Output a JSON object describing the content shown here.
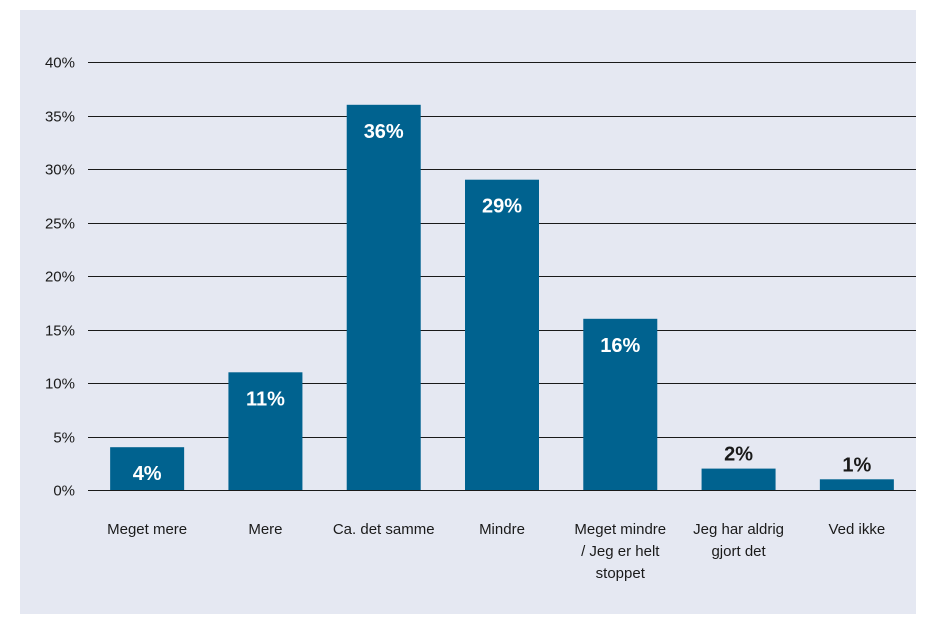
{
  "chart_data": {
    "type": "bar",
    "categories": [
      [
        "Meget mere"
      ],
      [
        "Mere"
      ],
      [
        "Ca. det samme"
      ],
      [
        "Mindre"
      ],
      [
        "Meget mindre",
        "/ Jeg er helt",
        "stoppet"
      ],
      [
        "Jeg har aldrig",
        "gjort det"
      ],
      [
        "Ved ikke"
      ]
    ],
    "values": [
      4,
      11,
      36,
      29,
      16,
      2,
      1
    ],
    "data_labels": [
      "4%",
      "11%",
      "36%",
      "29%",
      "16%",
      "2%",
      "1%"
    ],
    "yticks": [
      {
        "value": 0,
        "label": "0%"
      },
      {
        "value": 5,
        "label": "5%"
      },
      {
        "value": 10,
        "label": "10%"
      },
      {
        "value": 15,
        "label": "15%"
      },
      {
        "value": 20,
        "label": "20%"
      },
      {
        "value": 25,
        "label": "25%"
      },
      {
        "value": 30,
        "label": "30%"
      },
      {
        "value": 35,
        "label": "35%"
      },
      {
        "value": 40,
        "label": "40%"
      }
    ],
    "ylim": [
      0,
      40
    ],
    "grid": true,
    "title": "",
    "xlabel": "",
    "ylabel": "",
    "colors": {
      "bar": "#00628f",
      "panel_background": "#e5e8f2",
      "label_inside": "#ffffff",
      "label_outside": "#1a1a1a"
    }
  }
}
